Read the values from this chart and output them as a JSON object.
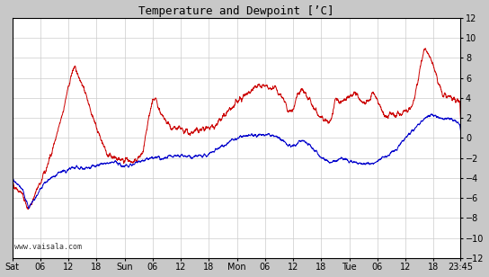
{
  "title": "Temperature and Dewpoint [’C]",
  "ylim": [
    -12,
    12
  ],
  "yticks": [
    -12,
    -10,
    -8,
    -6,
    -4,
    -2,
    0,
    2,
    4,
    6,
    8,
    10,
    12
  ],
  "watermark": "www.vaisala.com",
  "temp_color": "#cc0000",
  "dew_color": "#0000cc",
  "bg_color": "#ffffff",
  "outer_bg": "#c8c8c8",
  "grid_color": "#cccccc",
  "border_color": "#000000",
  "total_hours": 95.75
}
